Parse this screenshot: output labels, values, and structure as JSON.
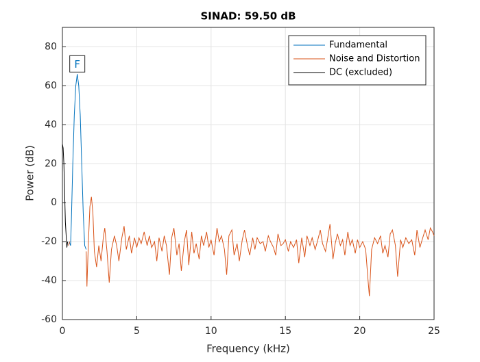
{
  "chart_data": {
    "type": "line",
    "title": "SINAD:  59.50 dB",
    "xlabel": "Frequency (kHz)",
    "ylabel": "Power (dB)",
    "xlim": [
      0,
      25
    ],
    "ylim": [
      -60,
      90
    ],
    "xticks": [
      0,
      5,
      10,
      15,
      20,
      25
    ],
    "yticks": [
      -60,
      -40,
      -20,
      0,
      20,
      40,
      60,
      80
    ],
    "grid": true,
    "legend": "northeast",
    "series": [
      {
        "name": "Fundamental",
        "color": "#0072BD",
        "x": [
          0.45,
          0.55,
          0.6,
          0.7,
          0.8,
          0.9,
          1.0,
          1.1,
          1.2,
          1.3,
          1.4,
          1.5,
          1.6
        ],
        "values": [
          -20,
          -22,
          -10,
          20,
          45,
          60,
          66,
          60,
          45,
          20,
          -5,
          -22,
          -24
        ]
      },
      {
        "name": "Noise and Distortion",
        "color": "#D95319",
        "x": [
          0.4,
          0.5,
          1.0,
          1.6,
          1.65,
          1.75,
          1.85,
          1.95,
          2.05,
          2.15,
          2.3,
          2.45,
          2.6,
          2.75,
          2.85,
          3.0,
          3.15,
          3.3,
          3.5,
          3.65,
          3.8,
          4.0,
          4.15,
          4.3,
          4.5,
          4.65,
          4.85,
          5.0,
          5.15,
          5.3,
          5.5,
          5.7,
          5.85,
          6.0,
          6.2,
          6.35,
          6.5,
          6.7,
          6.85,
          7.0,
          7.2,
          7.35,
          7.5,
          7.7,
          7.85,
          8.0,
          8.2,
          8.35,
          8.5,
          8.7,
          8.85,
          9.0,
          9.2,
          9.35,
          9.5,
          9.7,
          9.85,
          10.0,
          10.2,
          10.4,
          10.55,
          10.7,
          10.9,
          11.05,
          11.2,
          11.4,
          11.55,
          11.75,
          11.9,
          12.1,
          12.25,
          12.45,
          12.6,
          12.8,
          12.95,
          13.1,
          13.3,
          13.5,
          13.65,
          13.85,
          14.0,
          14.2,
          14.35,
          14.5,
          14.7,
          14.85,
          15.0,
          15.2,
          15.35,
          15.55,
          15.75,
          15.9,
          16.1,
          16.3,
          16.45,
          16.65,
          16.8,
          17.0,
          17.15,
          17.35,
          17.5,
          17.7,
          17.85,
          18.0,
          18.2,
          18.35,
          18.5,
          18.7,
          18.85,
          19.0,
          19.2,
          19.35,
          19.5,
          19.7,
          19.85,
          20.0,
          20.2,
          20.4,
          20.55,
          20.65,
          20.8,
          21.0,
          21.2,
          21.4,
          21.55,
          21.7,
          21.9,
          22.05,
          22.2,
          22.4,
          22.55,
          22.75,
          22.9,
          23.1,
          23.3,
          23.5,
          23.7,
          23.85,
          24.05,
          24.2,
          24.4,
          24.6,
          24.75,
          24.9,
          25.0
        ],
        "values": [
          -22,
          -20,
          null,
          -25,
          -43,
          -20,
          -2,
          3,
          -5,
          -25,
          -33,
          -22,
          -30,
          -18,
          -13,
          -25,
          -41,
          -24,
          -17,
          -22,
          -30,
          -18,
          -12,
          -24,
          -17,
          -26,
          -18,
          -23,
          -18,
          -21,
          -15,
          -22,
          -17,
          -23,
          -20,
          -30,
          -18,
          -25,
          -17,
          -22,
          -37,
          -18,
          -13,
          -27,
          -21,
          -35,
          -20,
          -14,
          -32,
          -15,
          -26,
          -21,
          -29,
          -17,
          -22,
          -15,
          -23,
          -19,
          -27,
          -13,
          -20,
          -17,
          -24,
          -37,
          -17,
          -14,
          -27,
          -21,
          -30,
          -19,
          -14,
          -22,
          -27,
          -18,
          -24,
          -18,
          -21,
          -20,
          -25,
          -17,
          -20,
          -23,
          -27,
          -16,
          -22,
          -21,
          -19,
          -25,
          -20,
          -23,
          -19,
          -31,
          -18,
          -28,
          -17,
          -22,
          -18,
          -24,
          -20,
          -14,
          -21,
          -25,
          -18,
          -11,
          -29,
          -21,
          -16,
          -22,
          -19,
          -27,
          -15,
          -22,
          -19,
          -26,
          -19,
          -23,
          -20,
          -24,
          -39,
          -48,
          -24,
          -18,
          -21,
          -17,
          -26,
          -22,
          -28,
          -16,
          -14,
          -22,
          -38,
          -19,
          -23,
          -18,
          -21,
          -19,
          -27,
          -14,
          -23,
          -19,
          -14,
          -19,
          -13,
          -15,
          -17
        ]
      },
      {
        "name": "DC (excluded)",
        "color": "#000000",
        "x": [
          0,
          0.05,
          0.1,
          0.2,
          0.3,
          0.35
        ],
        "values": [
          30,
          28,
          20,
          -10,
          -23,
          -20
        ]
      }
    ],
    "annotations": [
      {
        "text": "F",
        "x": 1,
        "y": 66
      }
    ]
  }
}
